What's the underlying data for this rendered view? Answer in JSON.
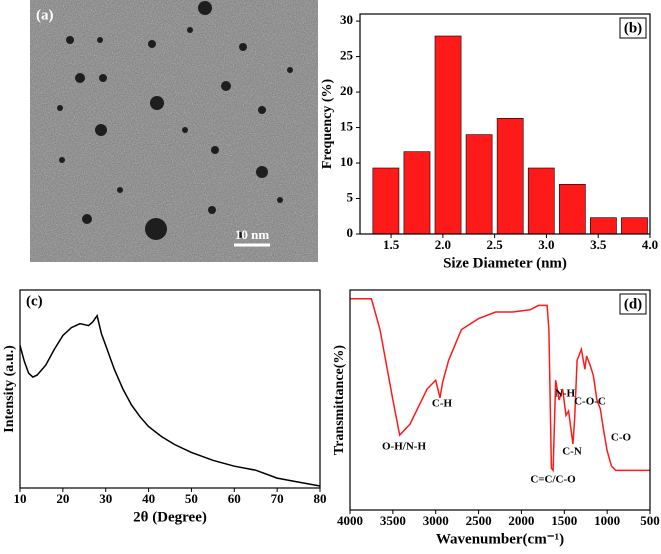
{
  "image": {
    "label": "(a)",
    "scale_bar": "10 nm"
  },
  "chart_data": [
    {
      "type": "histogram",
      "label": "(b)",
      "xlabel": "Size Diameter (nm)",
      "ylabel": "Frequency (%)",
      "bins": [
        1.3,
        1.6,
        1.9,
        2.2,
        2.5,
        2.8,
        3.1,
        3.4,
        3.7,
        4.0
      ],
      "values": [
        9.3,
        11.6,
        27.9,
        14,
        16.3,
        9.3,
        7,
        2.3,
        2.3
      ],
      "color": "#ff1a1a",
      "xlim": [
        1.2,
        4.0
      ],
      "xticks": [
        1.5,
        {
          "value": 2,
          "label": "2.0"
        },
        2.5,
        {
          "value": 3,
          "label": "3.0"
        },
        3.5,
        {
          "value": 4,
          "label": "4.0"
        }
      ],
      "ylim": [
        0,
        31
      ],
      "yticks": [
        0,
        5,
        10,
        15,
        20,
        25,
        30
      ]
    },
    {
      "type": "line",
      "label": "(c)",
      "xlabel": "2θ (Degree)",
      "ylabel": "Intensity (a.u.)",
      "x": [
        10,
        11,
        12,
        13,
        14,
        16,
        18,
        20,
        22,
        24,
        26,
        27,
        28,
        29,
        30,
        32,
        34,
        36,
        38,
        40,
        43,
        46,
        50,
        55,
        60,
        65,
        70,
        75,
        80
      ],
      "values": [
        72,
        64,
        58,
        56,
        57,
        62,
        70,
        77,
        81,
        83,
        82,
        84,
        87,
        78,
        72,
        60,
        50,
        42,
        36,
        31,
        26,
        22,
        18,
        14,
        11,
        9,
        5,
        3,
        1
      ],
      "color": "#000000",
      "xlim": [
        10,
        80
      ],
      "xticks": [
        10,
        20,
        30,
        40,
        50,
        60,
        70,
        80
      ],
      "ylim": [
        0,
        100
      ]
    },
    {
      "type": "line",
      "label": "(d)",
      "xlabel": "Wavenumber(cm⁻¹)",
      "ylabel": "Transmittance(%)",
      "x": [
        4000,
        3750,
        3650,
        3500,
        3420,
        3300,
        3100,
        3000,
        2950,
        2920,
        2850,
        2700,
        2500,
        2300,
        2100,
        1900,
        1800,
        1700,
        1680,
        1650,
        1630,
        1600,
        1560,
        1520,
        1480,
        1450,
        1400,
        1380,
        1350,
        1300,
        1260,
        1240,
        1200,
        1160,
        1120,
        1080,
        1040,
        1000,
        950,
        900,
        700,
        500
      ],
      "values": [
        96,
        96,
        82,
        50,
        34,
        39,
        55,
        59,
        51,
        58,
        68,
        82,
        87,
        90,
        90,
        91,
        93,
        93,
        82,
        19,
        18,
        59,
        50,
        55,
        43,
        45,
        30,
        41,
        68,
        73,
        64,
        70,
        66,
        61,
        50,
        46,
        36,
        27,
        20,
        18,
        18,
        18
      ],
      "color": "#ff1a1a",
      "xlim": [
        4000,
        500
      ],
      "xticks": [
        4000,
        3500,
        3000,
        2500,
        2000,
        1500,
        1000,
        500
      ],
      "ylim": [
        0,
        100
      ],
      "annotations": [
        "O-H/N-H",
        "C-H",
        "N-H",
        "C-O-C",
        "C-N",
        "C-O",
        "C=C/C-O"
      ]
    }
  ]
}
